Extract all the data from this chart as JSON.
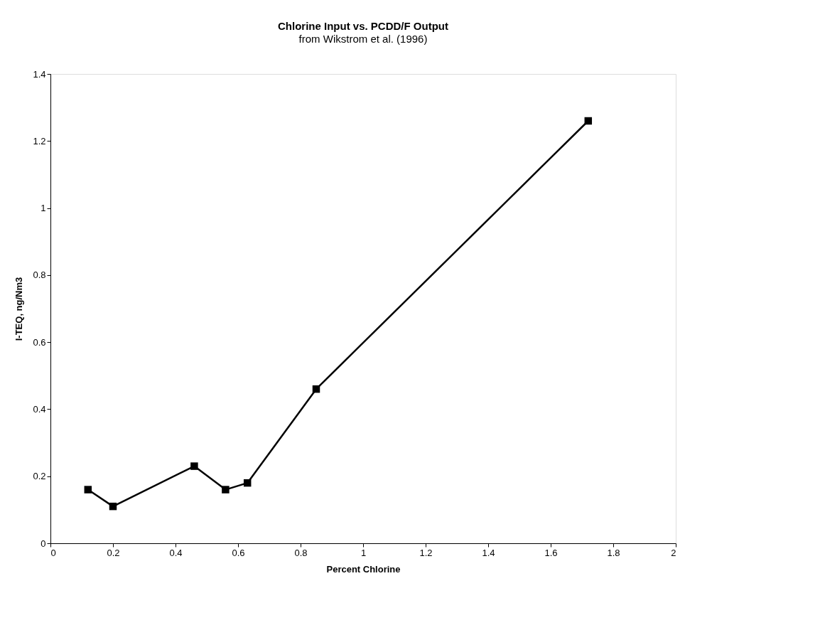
{
  "chart_data": {
    "type": "line",
    "title": "Chlorine Input vs. PCDD/F Output",
    "subtitle": "from Wikstrom et al. (1996)",
    "xlabel": "Percent Chlorine",
    "ylabel": "I-TEQ, ng/Nm3",
    "x": [
      0.12,
      0.2,
      0.46,
      0.56,
      0.63,
      0.85,
      1.72
    ],
    "series": [
      {
        "color": "#000000",
        "values": [
          0.16,
          0.11,
          0.23,
          0.16,
          0.18,
          0.46,
          1.26
        ]
      }
    ],
    "xlim": [
      0,
      2
    ],
    "xticks": [
      0,
      0.2,
      0.4,
      0.6,
      0.8,
      1,
      1.2,
      1.4,
      1.6,
      1.8,
      2
    ],
    "ylim": [
      0,
      1.4
    ],
    "yticks": [
      0,
      0.2,
      0.4,
      0.6,
      0.8,
      1,
      1.2,
      1.4
    ],
    "grid": false,
    "marker": "square",
    "line_style": "solid"
  }
}
